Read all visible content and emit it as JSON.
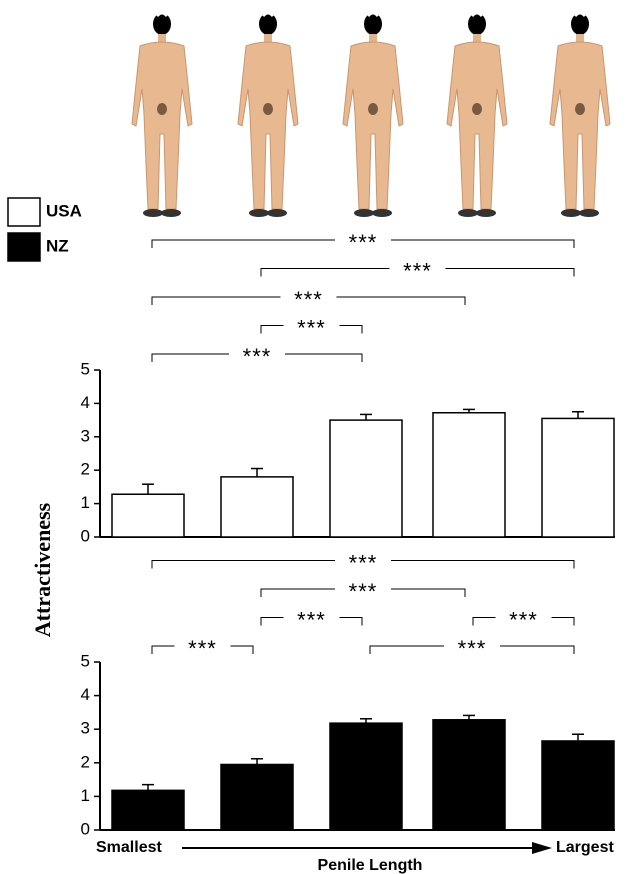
{
  "chart_data": [
    {
      "type": "bar",
      "categories": [
        null,
        null,
        null,
        null,
        null
      ],
      "series": [
        {
          "name": "USA",
          "color": "#ffffff",
          "values": [
            1.28,
            1.8,
            3.5,
            3.72,
            3.55
          ],
          "errors": [
            0.3,
            0.25,
            0.17,
            0.1,
            0.2
          ]
        }
      ],
      "ylim": [
        0,
        5
      ],
      "yticks": [
        0,
        1,
        2,
        3,
        4,
        5
      ],
      "ylabel": "Attractiveness",
      "significance": [
        {
          "from": 0,
          "to": 4,
          "label": "***"
        },
        {
          "from": 1,
          "to": 4,
          "label": "***"
        },
        {
          "from": 0,
          "to": 3,
          "label": "***"
        },
        {
          "from": 1,
          "to": 2,
          "label": "***"
        },
        {
          "from": 0,
          "to": 2,
          "label": "***"
        }
      ]
    },
    {
      "type": "bar",
      "categories": [
        null,
        null,
        null,
        null,
        null
      ],
      "series": [
        {
          "name": "NZ",
          "color": "#000000",
          "values": [
            1.18,
            1.95,
            3.18,
            3.28,
            2.65
          ],
          "errors": [
            0.17,
            0.17,
            0.13,
            0.13,
            0.2
          ]
        }
      ],
      "ylim": [
        0,
        5
      ],
      "yticks": [
        0,
        1,
        2,
        3,
        4,
        5
      ],
      "xlabel": "Penile Length",
      "x_start_label": "Smallest",
      "x_end_label": "Largest",
      "significance": [
        {
          "from": 0,
          "to": 4,
          "label": "***"
        },
        {
          "from": 1,
          "to": 3,
          "label": "***"
        },
        {
          "from": 1,
          "to": 2,
          "label": "***"
        },
        {
          "from": 3,
          "to": 4,
          "label": "***"
        },
        {
          "from": 0,
          "to": 1,
          "label": "***"
        },
        {
          "from": 2,
          "to": 4,
          "label": "***"
        }
      ]
    }
  ]
}
